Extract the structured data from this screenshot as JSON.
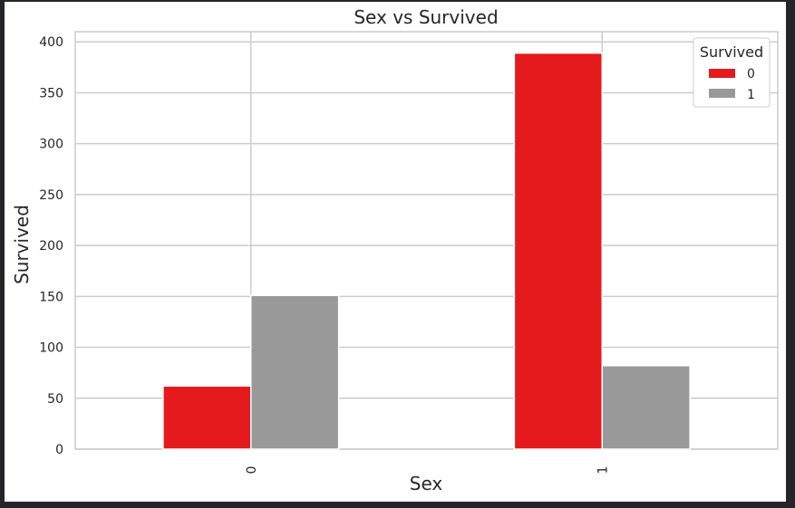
{
  "chart_data": {
    "type": "bar",
    "title": "Sex vs Survived",
    "xlabel": "Sex",
    "ylabel": "Survived",
    "categories": [
      "0",
      "1"
    ],
    "series": [
      {
        "name": "0",
        "values": [
          62,
          389
        ],
        "color": "#e41a1c"
      },
      {
        "name": "1",
        "values": [
          151,
          82
        ],
        "color": "#999999"
      }
    ],
    "ylim": [
      0,
      410
    ],
    "yticks": [
      0,
      50,
      100,
      150,
      200,
      250,
      300,
      350,
      400
    ],
    "grid": true,
    "legend": {
      "title": "Survived",
      "placement": "top-right"
    }
  }
}
